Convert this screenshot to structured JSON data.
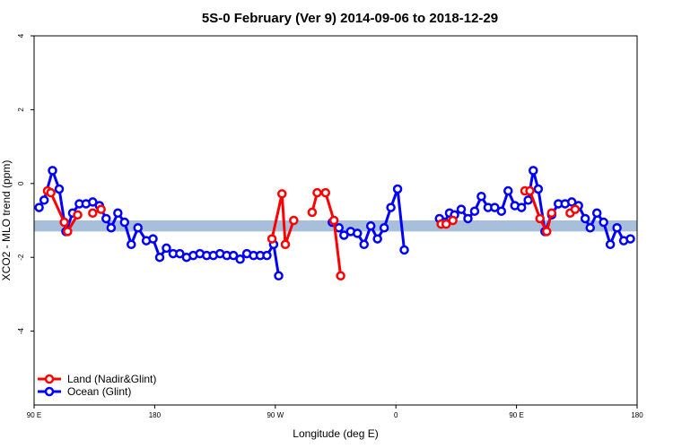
{
  "chart_data": {
    "type": "line",
    "title": "5S-0 February (Ver 9)   2014-09-06 to 2018-12-29",
    "xlabel": "Longitude (deg E)",
    "ylabel": "XCO2 - MLO trend (ppm)",
    "xlim": [
      90,
      450
    ],
    "ylim": [
      -6,
      4
    ],
    "x_ticks": [
      {
        "value": 90,
        "label": "90 E"
      },
      {
        "value": 162,
        "label": "180"
      },
      {
        "value": 234,
        "label": "90 W"
      },
      {
        "value": 306,
        "label": "0"
      },
      {
        "value": 378,
        "label": "90 E"
      },
      {
        "value": 450,
        "label": "180"
      }
    ],
    "y_ticks": [
      {
        "value": 4,
        "label": "4"
      },
      {
        "value": 2,
        "label": "2"
      },
      {
        "value": 0,
        "label": "0"
      },
      {
        "value": -2,
        "label": "-2"
      },
      {
        "value": -4,
        "label": "-4"
      }
    ],
    "band": {
      "y_min": -1.3,
      "y_max": -1.0,
      "color": "#a8bfdc"
    },
    "series": [
      {
        "name": "Land (Nadir&Glint)",
        "color": "#ff0000",
        "segments": [
          [
            [
              98,
              -0.2
            ],
            [
              100,
              -0.25
            ],
            [
              108,
              -1.05
            ],
            [
              110,
              -1.3
            ],
            [
              116,
              -0.85
            ]
          ],
          [
            [
              125,
              -0.8
            ],
            [
              130,
              -0.7
            ]
          ],
          [
            [
              232,
              -1.5
            ],
            [
              238,
              -0.28
            ],
            [
              240,
              -1.65
            ],
            [
              245,
              -1.0
            ]
          ],
          [
            [
              256,
              -0.78
            ],
            [
              259,
              -0.25
            ],
            [
              264,
              -0.25
            ],
            [
              269,
              -1.0
            ],
            [
              273,
              -2.5
            ]
          ],
          [
            [
              383,
              -0.2
            ],
            [
              386,
              -0.2
            ],
            [
              392,
              -0.95
            ],
            [
              396,
              -1.3
            ],
            [
              399,
              -0.8
            ]
          ],
          [
            [
              410,
              -0.8
            ],
            [
              413,
              -0.7
            ]
          ],
          [
            [
              333,
              -1.1
            ],
            [
              336,
              -1.1
            ],
            [
              340,
              -1.0
            ]
          ]
        ]
      },
      {
        "name": "Ocean (Glint)",
        "color": "#0000ff",
        "segments": [
          [
            [
              93,
              -0.65
            ],
            [
              96,
              -0.45
            ],
            [
              101,
              0.35
            ],
            [
              105,
              -0.15
            ],
            [
              109,
              -1.3
            ],
            [
              113,
              -0.8
            ],
            [
              117,
              -0.55
            ],
            [
              121,
              -0.55
            ],
            [
              125,
              -0.5
            ],
            [
              129,
              -0.6
            ],
            [
              133,
              -0.95
            ],
            [
              136,
              -1.2
            ],
            [
              140,
              -0.8
            ],
            [
              144,
              -1.05
            ],
            [
              148,
              -1.65
            ],
            [
              152,
              -1.2
            ],
            [
              157,
              -1.55
            ],
            [
              161,
              -1.5
            ],
            [
              165,
              -2.0
            ],
            [
              169,
              -1.75
            ],
            [
              173,
              -1.9
            ],
            [
              177,
              -1.9
            ],
            [
              181,
              -2.0
            ],
            [
              185,
              -1.95
            ],
            [
              189,
              -1.9
            ],
            [
              193,
              -1.95
            ],
            [
              197,
              -1.95
            ],
            [
              201,
              -1.9
            ],
            [
              205,
              -1.95
            ],
            [
              209,
              -1.95
            ],
            [
              213,
              -2.05
            ],
            [
              217,
              -1.9
            ],
            [
              221,
              -1.95
            ],
            [
              225,
              -1.95
            ],
            [
              229,
              -1.95
            ],
            [
              233,
              -1.65
            ],
            [
              236,
              -2.5
            ]
          ],
          [
            [
              268,
              -1.05
            ],
            [
              272,
              -1.2
            ],
            [
              275,
              -1.4
            ],
            [
              279,
              -1.3
            ],
            [
              283,
              -1.35
            ],
            [
              287,
              -1.65
            ],
            [
              291,
              -1.15
            ],
            [
              295,
              -1.5
            ],
            [
              299,
              -1.2
            ],
            [
              303,
              -0.65
            ],
            [
              307,
              -0.15
            ],
            [
              311,
              -1.8
            ]
          ],
          [
            [
              332,
              -0.95
            ],
            [
              335,
              -1.05
            ],
            [
              338,
              -0.8
            ],
            [
              341,
              -0.85
            ],
            [
              345,
              -0.7
            ],
            [
              349,
              -0.95
            ],
            [
              353,
              -0.75
            ],
            [
              357,
              -0.35
            ],
            [
              361,
              -0.65
            ],
            [
              365,
              -0.65
            ],
            [
              369,
              -0.75
            ],
            [
              373,
              -0.2
            ],
            [
              377,
              -0.6
            ],
            [
              381,
              -0.65
            ],
            [
              385,
              -0.45
            ],
            [
              388,
              0.35
            ],
            [
              391,
              -0.15
            ],
            [
              395,
              -1.3
            ],
            [
              399,
              -0.85
            ],
            [
              403,
              -0.55
            ],
            [
              407,
              -0.55
            ],
            [
              411,
              -0.5
            ],
            [
              415,
              -0.6
            ],
            [
              419,
              -0.95
            ],
            [
              422,
              -1.2
            ],
            [
              426,
              -0.8
            ],
            [
              430,
              -1.05
            ],
            [
              434,
              -1.65
            ],
            [
              438,
              -1.2
            ],
            [
              442,
              -1.55
            ],
            [
              446,
              -1.5
            ]
          ]
        ]
      }
    ],
    "legend": {
      "position": "bottom-left",
      "items": [
        {
          "label": "Land (Nadir&Glint)",
          "color": "#ff0000"
        },
        {
          "label": "Ocean (Glint)",
          "color": "#0000ff"
        }
      ]
    }
  }
}
